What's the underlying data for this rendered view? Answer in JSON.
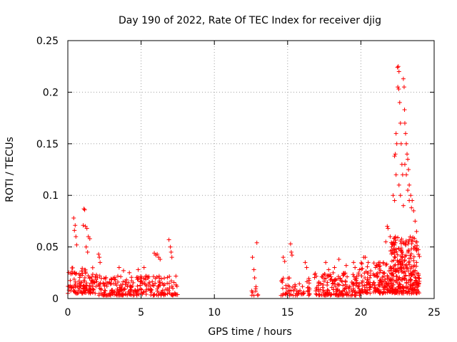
{
  "chart_data": {
    "type": "scatter",
    "title": "Day 190 of 2022, Rate Of TEC Index for receiver djig",
    "xlabel": "GPS time / hours",
    "ylabel": "ROTI / TECUs",
    "xlim": [
      0,
      25
    ],
    "ylim": [
      0,
      0.25
    ],
    "x_ticks": [
      "0",
      "5",
      "10",
      "15",
      "20",
      "25"
    ],
    "y_ticks": [
      "0",
      "0.05",
      "0.1",
      "0.15",
      "0.2",
      "0.25"
    ],
    "x_tick_values": [
      0,
      5,
      10,
      15,
      20,
      25
    ],
    "y_tick_values": [
      0,
      0.05,
      0.1,
      0.15,
      0.2,
      0.25
    ],
    "grid": true,
    "marker": "+",
    "series": [
      {
        "name": "ROTI",
        "color": "#ff0000",
        "clusters": [
          {
            "x_range": [
              0.0,
              2.0
            ],
            "base": [
              0.005,
              0.03
            ],
            "density": 120
          },
          {
            "x_range": [
              2.0,
              7.5
            ],
            "base": [
              0.003,
              0.022
            ],
            "density": 260
          },
          {
            "x_range": [
              12.5,
              13.0
            ],
            "base": [
              0.003,
              0.015
            ],
            "density": 10
          },
          {
            "x_range": [
              14.5,
              16.5
            ],
            "base": [
              0.003,
              0.02
            ],
            "density": 60
          },
          {
            "x_range": [
              16.8,
              20.0
            ],
            "base": [
              0.003,
              0.025
            ],
            "density": 180
          },
          {
            "x_range": [
              20.0,
              22.0
            ],
            "base": [
              0.005,
              0.035
            ],
            "density": 150
          },
          {
            "x_range": [
              22.0,
              24.0
            ],
            "base": [
              0.005,
              0.06
            ],
            "density": 300
          }
        ],
        "points": [
          [
            0.4,
            0.078
          ],
          [
            0.5,
            0.071
          ],
          [
            0.45,
            0.066
          ],
          [
            0.55,
            0.06
          ],
          [
            0.6,
            0.052
          ],
          [
            1.1,
            0.087
          ],
          [
            1.15,
            0.086
          ],
          [
            1.05,
            0.071
          ],
          [
            1.2,
            0.07
          ],
          [
            1.3,
            0.068
          ],
          [
            1.4,
            0.06
          ],
          [
            1.5,
            0.058
          ],
          [
            1.25,
            0.05
          ],
          [
            1.35,
            0.045
          ],
          [
            2.1,
            0.043
          ],
          [
            2.15,
            0.04
          ],
          [
            2.2,
            0.035
          ],
          [
            3.5,
            0.03
          ],
          [
            3.8,
            0.027
          ],
          [
            4.2,
            0.025
          ],
          [
            4.8,
            0.028
          ],
          [
            5.2,
            0.03
          ],
          [
            5.9,
            0.044
          ],
          [
            6.0,
            0.042
          ],
          [
            6.1,
            0.043
          ],
          [
            6.2,
            0.04
          ],
          [
            6.3,
            0.038
          ],
          [
            6.9,
            0.057
          ],
          [
            7.0,
            0.05
          ],
          [
            7.05,
            0.045
          ],
          [
            7.1,
            0.04
          ],
          [
            12.6,
            0.04
          ],
          [
            12.9,
            0.054
          ],
          [
            12.7,
            0.028
          ],
          [
            12.75,
            0.02
          ],
          [
            14.7,
            0.04
          ],
          [
            14.8,
            0.036
          ],
          [
            15.2,
            0.053
          ],
          [
            15.25,
            0.045
          ],
          [
            15.3,
            0.042
          ],
          [
            16.2,
            0.035
          ],
          [
            16.3,
            0.03
          ],
          [
            17.6,
            0.035
          ],
          [
            17.8,
            0.028
          ],
          [
            18.2,
            0.03
          ],
          [
            18.5,
            0.038
          ],
          [
            19.0,
            0.032
          ],
          [
            19.5,
            0.035
          ],
          [
            19.6,
            0.03
          ],
          [
            19.9,
            0.028
          ],
          [
            20.2,
            0.04
          ],
          [
            20.3,
            0.04
          ],
          [
            20.5,
            0.035
          ],
          [
            21.0,
            0.03
          ],
          [
            21.3,
            0.035
          ],
          [
            21.7,
            0.055
          ],
          [
            21.8,
            0.07
          ],
          [
            21.85,
            0.068
          ],
          [
            22.0,
            0.06
          ],
          [
            22.1,
            0.05
          ],
          [
            22.2,
            0.1
          ],
          [
            22.3,
            0.095
          ],
          [
            22.35,
            0.14
          ],
          [
            22.4,
            0.16
          ],
          [
            22.45,
            0.15
          ],
          [
            22.5,
            0.224
          ],
          [
            22.55,
            0.225
          ],
          [
            22.6,
            0.22
          ],
          [
            22.52,
            0.205
          ],
          [
            22.58,
            0.203
          ],
          [
            22.65,
            0.19
          ],
          [
            22.7,
            0.17
          ],
          [
            22.75,
            0.15
          ],
          [
            22.8,
            0.13
          ],
          [
            22.85,
            0.12
          ],
          [
            22.9,
            0.213
          ],
          [
            22.95,
            0.205
          ],
          [
            22.98,
            0.183
          ],
          [
            23.0,
            0.17
          ],
          [
            23.05,
            0.16
          ],
          [
            23.1,
            0.15
          ],
          [
            23.15,
            0.14
          ],
          [
            23.2,
            0.135
          ],
          [
            23.25,
            0.125
          ],
          [
            23.3,
            0.11
          ],
          [
            23.4,
            0.1
          ],
          [
            23.5,
            0.095
          ],
          [
            23.6,
            0.085
          ],
          [
            23.7,
            0.075
          ],
          [
            23.8,
            0.065
          ],
          [
            22.3,
            0.138
          ],
          [
            22.4,
            0.12
          ],
          [
            22.6,
            0.11
          ],
          [
            22.7,
            0.1
          ],
          [
            22.9,
            0.09
          ],
          [
            23.0,
            0.13
          ],
          [
            23.1,
            0.12
          ],
          [
            23.2,
            0.105
          ],
          [
            23.3,
            0.095
          ],
          [
            23.45,
            0.088
          ]
        ]
      }
    ]
  }
}
